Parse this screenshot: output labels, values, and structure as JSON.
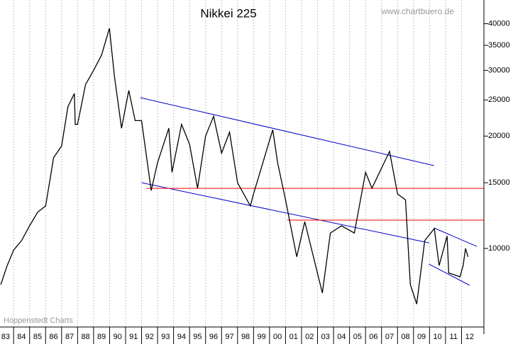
{
  "chart_data": {
    "type": "line",
    "title": "Nikkei 225",
    "source": "www.chartbuero.de",
    "credit": "Hoppenstedt Charts",
    "log_scale": true,
    "grid": true,
    "x": [
      1983.2,
      1983.6,
      1984.0,
      1984.5,
      1985.0,
      1985.5,
      1986.0,
      1986.3,
      1986.5,
      1987.0,
      1987.4,
      1987.8,
      1987.85,
      1988.0,
      1988.5,
      1989.0,
      1989.5,
      1989.99,
      1990.3,
      1990.75,
      1991.2,
      1991.6,
      1992.0,
      1992.6,
      1993.0,
      1993.7,
      1993.9,
      1994.5,
      1995.0,
      1995.5,
      1996.0,
      1996.5,
      1997.0,
      1997.5,
      1998.0,
      1998.8,
      1999.0,
      2000.2,
      2000.5,
      2001.0,
      2001.7,
      2002.2,
      2003.3,
      2003.8,
      2004.5,
      2005.3,
      2006.0,
      2006.4,
      2007.5,
      2008.0,
      2008.5,
      2008.8,
      2009.2,
      2009.7,
      2010.3,
      2010.6,
      2011.1,
      2011.2,
      2011.9,
      2012.1,
      2012.25,
      2012.4
    ],
    "series": [
      {
        "name": "Nikkei 225",
        "color": "#000000",
        "values": [
          8000,
          9000,
          9900,
          10500,
          11500,
          12500,
          13000,
          15500,
          17500,
          18800,
          24000,
          26000,
          21500,
          21500,
          27500,
          30000,
          33000,
          38900,
          29000,
          21000,
          26500,
          22000,
          22000,
          14300,
          17000,
          21000,
          16000,
          21500,
          19000,
          14500,
          20000,
          22600,
          18000,
          20500,
          15000,
          13000,
          14000,
          20800,
          17000,
          13500,
          9500,
          11800,
          7600,
          11000,
          11500,
          11000,
          16000,
          14500,
          18200,
          14000,
          13500,
          8000,
          7100,
          10500,
          11300,
          9000,
          10800,
          8600,
          8400,
          9000,
          10000,
          9500
        ]
      }
    ],
    "trendlines": [
      {
        "color": "#0000cc",
        "x": [
          1991.93,
          2010.28
        ],
        "y": [
          25350,
          16670
        ]
      },
      {
        "color": "#0000cc",
        "x": [
          1992.0,
          2009.97
        ],
        "y": [
          15000,
          10350
        ]
      },
      {
        "color": "#ff0000",
        "x": [
          1992.3,
          2013.4
        ],
        "y": [
          14490,
          14490
        ]
      },
      {
        "color": "#ff0000",
        "x": [
          2001.1,
          2013.4
        ],
        "y": [
          11910,
          11910
        ]
      },
      {
        "color": "#0000cc",
        "x": [
          2010.28,
          2012.95
        ],
        "y": [
          11350,
          10130
        ]
      },
      {
        "color": "#0000cc",
        "x": [
          2009.97,
          2012.5
        ],
        "y": [
          9080,
          7970
        ]
      }
    ],
    "xlim": [
      1983.15,
      2013.4
    ],
    "ylim": [
      6160,
      46300
    ],
    "yticks": [
      10000,
      15000,
      20000,
      25000,
      30000,
      35000,
      40000
    ],
    "xticks": [
      {
        "value": 1983.5,
        "label": "83"
      },
      {
        "value": 1984.5,
        "label": "84"
      },
      {
        "value": 1985.5,
        "label": "85"
      },
      {
        "value": 1986.5,
        "label": "86"
      },
      {
        "value": 1987.5,
        "label": "87"
      },
      {
        "value": 1988.5,
        "label": "88"
      },
      {
        "value": 1989.5,
        "label": "89"
      },
      {
        "value": 1990.5,
        "label": "90"
      },
      {
        "value": 1991.5,
        "label": "91"
      },
      {
        "value": 1992.5,
        "label": "92"
      },
      {
        "value": 1993.5,
        "label": "93"
      },
      {
        "value": 1994.5,
        "label": "94"
      },
      {
        "value": 1995.5,
        "label": "95"
      },
      {
        "value": 1996.5,
        "label": "96"
      },
      {
        "value": 1997.5,
        "label": "97"
      },
      {
        "value": 1998.5,
        "label": "98"
      },
      {
        "value": 1999.5,
        "label": "99"
      },
      {
        "value": 2000.5,
        "label": "00"
      },
      {
        "value": 2001.5,
        "label": "01"
      },
      {
        "value": 2002.5,
        "label": "02"
      },
      {
        "value": 2003.5,
        "label": "03"
      },
      {
        "value": 2004.5,
        "label": "04"
      },
      {
        "value": 2005.5,
        "label": "05"
      },
      {
        "value": 2006.5,
        "label": "06"
      },
      {
        "value": 2007.5,
        "label": "07"
      },
      {
        "value": 2008.5,
        "label": "08"
      },
      {
        "value": 2009.5,
        "label": "09"
      },
      {
        "value": 2010.5,
        "label": "10"
      },
      {
        "value": 2011.5,
        "label": "11"
      },
      {
        "value": 2012.5,
        "label": "12"
      }
    ]
  }
}
